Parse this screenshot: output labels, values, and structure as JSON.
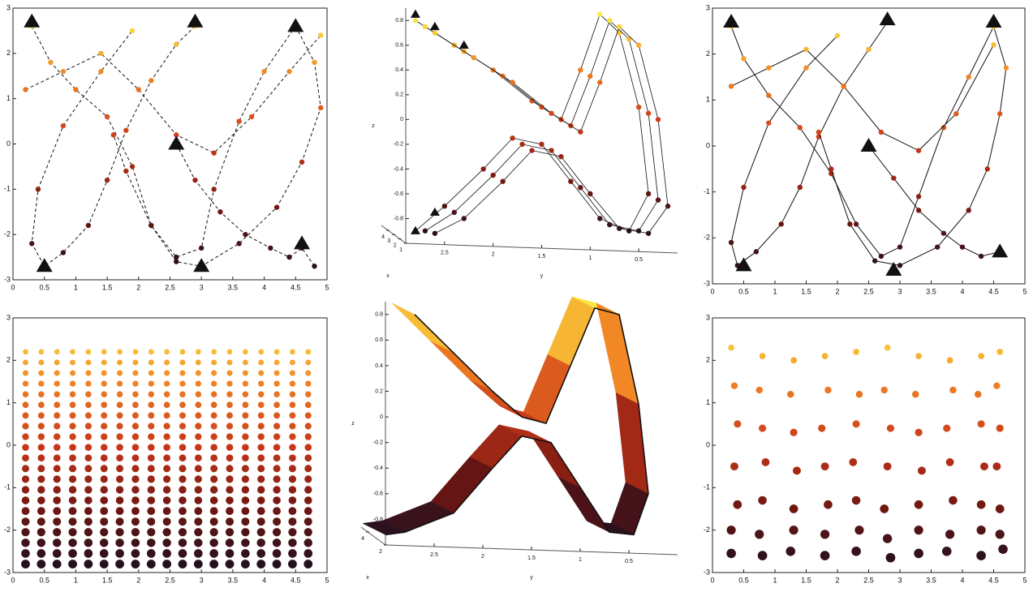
{
  "chart_data": [
    {
      "type": "trajectory",
      "line_style": "dashed",
      "colormap": "hot",
      "xlim": [
        0,
        5
      ],
      "ylim": [
        -3,
        3
      ],
      "xticks": [
        0,
        0.5,
        1,
        1.5,
        2,
        2.5,
        3,
        3.5,
        4,
        4.5,
        5
      ],
      "yticks": [
        -3,
        -2,
        -1,
        0,
        1,
        2,
        3
      ],
      "series": [
        {
          "x": [
            0.3,
            0.6,
            1.0,
            1.5,
            1.9,
            2.2,
            2.6,
            3.0,
            3.2,
            3.6,
            4.0,
            4.5
          ],
          "values": [
            2.6,
            1.8,
            1.2,
            0.6,
            -0.5,
            -1.8,
            -2.5,
            -2.3,
            -1.0,
            0.5,
            1.6,
            2.6
          ]
        },
        {
          "x": [
            2.9,
            2.6,
            2.2,
            1.8,
            1.5,
            1.2,
            0.8,
            0.5,
            0.3,
            0.4,
            0.8,
            1.4,
            1.9
          ],
          "values": [
            2.6,
            2.2,
            1.4,
            0.3,
            -0.8,
            -1.8,
            -2.4,
            -2.7,
            -2.2,
            -1.0,
            0.4,
            1.6,
            2.5
          ]
        },
        {
          "x": [
            4.5,
            4.8,
            4.9,
            4.6,
            4.2,
            3.6,
            3.0,
            2.6,
            2.2,
            1.8,
            1.6
          ],
          "values": [
            2.6,
            1.8,
            0.8,
            -0.4,
            -1.4,
            -2.2,
            -2.7,
            -2.6,
            -1.8,
            -0.6,
            0.2
          ]
        },
        {
          "x": [
            2.6,
            2.9,
            3.3,
            3.7,
            4.1,
            4.4,
            4.6,
            4.8
          ],
          "values": [
            0.0,
            -0.8,
            -1.5,
            -2.0,
            -2.3,
            -2.5,
            -2.3,
            -2.7
          ]
        },
        {
          "x": [
            0.2,
            0.8,
            1.4,
            2.0,
            2.6,
            3.2,
            3.8,
            4.4,
            4.9
          ],
          "values": [
            1.2,
            1.6,
            2.0,
            1.2,
            0.2,
            -0.2,
            0.6,
            1.6,
            2.4
          ]
        }
      ],
      "markers": {
        "x": [
          0.3,
          2.9,
          4.5,
          2.6,
          4.6,
          0.5,
          3.0
        ],
        "values": [
          2.7,
          2.7,
          2.6,
          0.0,
          -2.2,
          -2.7,
          -2.7
        ]
      }
    },
    {
      "type": "trajectory3d",
      "colormap": "hot",
      "xlim": [
        2.9,
        0.1
      ],
      "ylim": [
        -1,
        0.9
      ],
      "xticks": [
        2.5,
        2,
        1.5,
        1,
        0.5
      ],
      "yticks": [
        -0.8,
        -0.6,
        -0.4,
        -0.2,
        0,
        0.2,
        0.4,
        0.6,
        0.8
      ],
      "xlabel": "y",
      "ylabel": "z",
      "depth_label": "x",
      "depth_ticks": [
        4,
        3,
        2,
        1
      ],
      "series": [
        {
          "x": [
            2.8,
            2.4,
            2.0,
            1.6,
            1.3,
            1.1,
            0.9,
            0.7,
            0.5,
            0.4,
            0.6,
            0.9,
            1.2,
            1.5,
            1.8,
            2.1,
            2.5,
            2.8
          ],
          "values": [
            0.8,
            0.6,
            0.4,
            0.15,
            0.0,
            0.4,
            0.85,
            0.7,
            0.1,
            -0.6,
            -0.9,
            -0.8,
            -0.5,
            -0.2,
            -0.15,
            -0.4,
            -0.7,
            -0.9
          ]
        },
        {
          "x": [
            2.7,
            2.3,
            1.9,
            1.5,
            1.2,
            1.0,
            0.8,
            0.6,
            0.4,
            0.3,
            0.5,
            0.8,
            1.1,
            1.4,
            1.7,
            2.0,
            2.4,
            2.7
          ],
          "values": [
            0.75,
            0.55,
            0.35,
            0.1,
            -0.05,
            0.35,
            0.8,
            0.65,
            0.05,
            -0.65,
            -0.9,
            -0.85,
            -0.55,
            -0.25,
            -0.2,
            -0.45,
            -0.75,
            -0.9
          ]
        },
        {
          "x": [
            2.6,
            2.2,
            1.8,
            1.4,
            1.1,
            0.9,
            0.7,
            0.5,
            0.3,
            0.2,
            0.4,
            0.7,
            1.0,
            1.3,
            1.6,
            1.9,
            2.3,
            2.6
          ],
          "values": [
            0.7,
            0.5,
            0.3,
            0.05,
            -0.1,
            0.3,
            0.75,
            0.6,
            0.0,
            -0.7,
            -0.92,
            -0.88,
            -0.6,
            -0.3,
            -0.25,
            -0.5,
            -0.8,
            -0.92
          ]
        }
      ],
      "markers": {
        "x": [
          2.8,
          2.6,
          2.3,
          2.6,
          2.8
        ],
        "values": [
          0.85,
          0.75,
          0.6,
          -0.75,
          -0.9
        ]
      }
    },
    {
      "type": "trajectory",
      "line_style": "solid",
      "colormap": "hot",
      "xlim": [
        0,
        5
      ],
      "ylim": [
        -3,
        3
      ],
      "xticks": [
        0,
        0.5,
        1,
        1.5,
        2,
        2.5,
        3,
        3.5,
        4,
        4.5,
        5
      ],
      "yticks": [
        -3,
        -2,
        -1,
        0,
        1,
        2,
        3
      ],
      "series": [
        {
          "x": [
            0.3,
            0.5,
            0.9,
            1.4,
            1.9,
            2.3,
            2.7,
            3.0,
            3.3,
            3.7,
            4.1,
            4.5
          ],
          "values": [
            2.6,
            1.9,
            1.1,
            0.4,
            -0.6,
            -1.7,
            -2.4,
            -2.2,
            -1.1,
            0.4,
            1.5,
            2.6
          ]
        },
        {
          "x": [
            2.8,
            2.5,
            2.1,
            1.7,
            1.4,
            1.1,
            0.7,
            0.4,
            0.3,
            0.5,
            0.9,
            1.5,
            2.0
          ],
          "values": [
            2.7,
            2.1,
            1.3,
            0.2,
            -0.9,
            -1.7,
            -2.3,
            -2.6,
            -2.1,
            -0.9,
            0.5,
            1.7,
            2.4
          ]
        },
        {
          "x": [
            4.5,
            4.7,
            4.6,
            4.4,
            4.1,
            3.6,
            3.0,
            2.6,
            2.2,
            1.9,
            1.7
          ],
          "values": [
            2.6,
            1.7,
            0.7,
            -0.5,
            -1.4,
            -2.2,
            -2.6,
            -2.5,
            -1.7,
            -0.5,
            0.3
          ]
        },
        {
          "x": [
            2.5,
            2.9,
            3.3,
            3.7,
            4.0,
            4.3,
            4.6
          ],
          "values": [
            0.0,
            -0.7,
            -1.4,
            -1.9,
            -2.2,
            -2.4,
            -2.3
          ]
        },
        {
          "x": [
            0.3,
            0.9,
            1.5,
            2.1,
            2.7,
            3.3,
            3.9,
            4.5
          ],
          "values": [
            1.3,
            1.7,
            2.1,
            1.3,
            0.3,
            -0.1,
            0.7,
            2.2
          ]
        }
      ],
      "markers": {
        "x": [
          0.3,
          2.8,
          4.5,
          2.5,
          4.6,
          0.5,
          2.9
        ],
        "values": [
          2.7,
          2.75,
          2.7,
          0.0,
          -2.3,
          -2.6,
          -2.7
        ]
      }
    },
    {
      "type": "grid-scatter",
      "colormap": "hot",
      "xlim": [
        0,
        5
      ],
      "ylim": [
        -3,
        3
      ],
      "xticks": [
        0,
        0.5,
        1,
        1.5,
        2,
        2.5,
        3,
        3.5,
        4,
        4.5,
        5
      ],
      "yticks": [
        -3,
        -2,
        -1,
        0,
        1,
        2,
        3
      ],
      "columns": [
        0.2,
        0.45,
        0.7,
        0.95,
        1.2,
        1.45,
        1.7,
        1.95,
        2.2,
        2.45,
        2.7,
        2.95,
        3.2,
        3.45,
        3.7,
        3.95,
        4.2,
        4.45,
        4.7
      ],
      "rows": [
        2.2,
        1.95,
        1.7,
        1.45,
        1.2,
        0.95,
        0.7,
        0.45,
        0.2,
        -0.05,
        -0.3,
        -0.55,
        -0.8,
        -1.05,
        -1.3,
        -1.55,
        -1.8,
        -2.05,
        -2.3,
        -2.55,
        -2.8
      ]
    },
    {
      "type": "ribbon3d",
      "colormap": "hot",
      "xlim": [
        3.0,
        0.0
      ],
      "ylim": [
        -1,
        0.9
      ],
      "xticks": [
        2.5,
        2,
        1.5,
        1,
        0.5
      ],
      "yticks": [
        -0.8,
        -0.6,
        -0.4,
        -0.2,
        0,
        0.2,
        0.4,
        0.6,
        0.8
      ],
      "xlabel": "y",
      "ylabel": "z",
      "depth_label": "x",
      "depth_ticks": [
        4,
        2
      ],
      "series": [
        {
          "x": [
            2.7,
            2.3,
            1.9,
            1.6,
            1.35,
            1.1,
            0.85,
            0.6,
            0.4,
            0.3,
            0.45,
            0.7,
            1.0,
            1.3,
            1.6,
            1.9,
            2.3,
            2.8,
            3.0
          ],
          "values": [
            0.8,
            0.5,
            0.2,
            0.0,
            -0.05,
            0.4,
            0.85,
            0.8,
            0.1,
            -0.6,
            -0.92,
            -0.9,
            -0.55,
            -0.2,
            -0.15,
            -0.4,
            -0.75,
            -0.9,
            -0.92
          ]
        }
      ]
    },
    {
      "type": "scatter",
      "colormap": "hot",
      "xlim": [
        0,
        5
      ],
      "ylim": [
        -3,
        3
      ],
      "xticks": [
        0,
        0.5,
        1,
        1.5,
        2,
        2.5,
        3,
        3.5,
        4,
        4.5,
        5
      ],
      "yticks": [
        -3,
        -2,
        -1,
        0,
        1,
        2,
        3
      ],
      "x": [
        0.3,
        0.8,
        1.3,
        1.8,
        2.3,
        2.8,
        3.3,
        3.8,
        4.3,
        4.6,
        0.35,
        0.75,
        1.25,
        1.85,
        2.35,
        2.75,
        3.25,
        3.85,
        4.25,
        4.55,
        0.4,
        0.8,
        1.3,
        1.75,
        2.3,
        2.85,
        3.3,
        3.75,
        4.3,
        4.6,
        0.35,
        0.85,
        1.35,
        1.8,
        2.25,
        2.8,
        3.35,
        3.8,
        4.35,
        4.55,
        0.4,
        0.8,
        1.3,
        1.85,
        2.3,
        2.75,
        3.3,
        3.85,
        4.3,
        4.6,
        0.3,
        0.75,
        1.3,
        1.8,
        2.35,
        2.8,
        3.3,
        3.8,
        4.3,
        4.6,
        0.3,
        0.8,
        1.25,
        1.8,
        2.3,
        2.85,
        3.3,
        3.75,
        4.3,
        4.65
      ],
      "values": [
        2.3,
        2.1,
        2.0,
        2.1,
        2.2,
        2.3,
        2.1,
        2.0,
        2.1,
        2.2,
        1.4,
        1.3,
        1.2,
        1.3,
        1.2,
        1.3,
        1.2,
        1.3,
        1.2,
        1.4,
        0.5,
        0.4,
        0.3,
        0.4,
        0.5,
        0.4,
        0.3,
        0.4,
        0.5,
        0.4,
        -0.5,
        -0.4,
        -0.6,
        -0.5,
        -0.4,
        -0.5,
        -0.6,
        -0.4,
        -0.5,
        -0.5,
        -1.4,
        -1.3,
        -1.5,
        -1.4,
        -1.3,
        -1.5,
        -1.4,
        -1.3,
        -1.4,
        -1.5,
        -2.0,
        -2.1,
        -2.0,
        -2.1,
        -2.0,
        -2.2,
        -2.0,
        -2.1,
        -2.0,
        -2.1,
        -2.55,
        -2.6,
        -2.5,
        -2.6,
        -2.5,
        -2.65,
        -2.55,
        -2.5,
        -2.6,
        -2.45
      ]
    }
  ]
}
